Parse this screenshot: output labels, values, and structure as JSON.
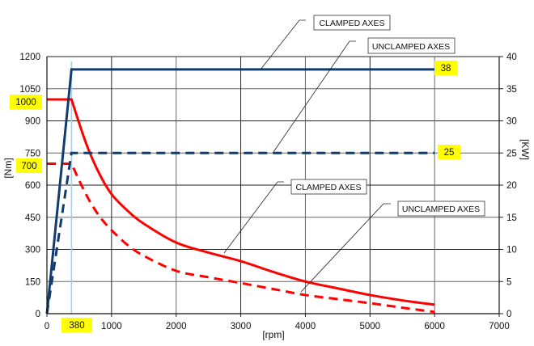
{
  "chart_data": {
    "type": "line",
    "title": "",
    "xlabel": "[rpm]",
    "ylabel_left": "[Nm]",
    "ylabel_right": "[KW]",
    "xlim": [
      0,
      7000
    ],
    "ylim_left": [
      0,
      1200
    ],
    "ylim_right": [
      0,
      40
    ],
    "x_ticks": [
      0,
      1000,
      2000,
      3000,
      4000,
      5000,
      6000,
      7000
    ],
    "x_tick_labels": [
      "0",
      "1000",
      "2000",
      "3000",
      "4000",
      "5000",
      "6000",
      "7000"
    ],
    "y_left_ticks": [
      0,
      150,
      300,
      450,
      600,
      750,
      900,
      1050,
      1200
    ],
    "y_left_tick_labels": [
      "0",
      "150",
      "300",
      "450",
      "600",
      "750",
      "900",
      "1050",
      "1200"
    ],
    "y_right_ticks": [
      0,
      5,
      10,
      15,
      20,
      25,
      30,
      35,
      40
    ],
    "y_right_tick_labels": [
      "0",
      "5",
      "10",
      "15",
      "20",
      "25",
      "30",
      "35",
      "40"
    ],
    "grid": true,
    "series": [
      {
        "name": "Torque clamped axes",
        "axis": "left",
        "color": "#ff0000",
        "style": "solid",
        "x": [
          0,
          380,
          600,
          800,
          1000,
          1250,
          1500,
          2000,
          2500,
          3000,
          3500,
          4000,
          4500,
          5000,
          5500,
          6000
        ],
        "y": [
          1000,
          1000,
          800,
          660,
          558,
          480,
          420,
          332,
          285,
          245,
          195,
          150,
          118,
          87,
          62,
          42
        ]
      },
      {
        "name": "Torque unclamped axes",
        "axis": "left",
        "color": "#ff0000",
        "style": "dashed",
        "x": [
          0,
          380,
          600,
          800,
          1000,
          1250,
          1500,
          2000,
          2500,
          3000,
          3500,
          4000,
          4500,
          5000,
          5500,
          6000
        ],
        "y": [
          700,
          700,
          560,
          460,
          390,
          320,
          270,
          200,
          170,
          143,
          115,
          87,
          68,
          49,
          28,
          8
        ]
      },
      {
        "name": "Power clamped axes",
        "axis": "right",
        "color": "#123c6e",
        "style": "solid",
        "x": [
          0,
          380,
          6000
        ],
        "y": [
          0,
          38,
          38
        ]
      },
      {
        "name": "Power unclamped axes",
        "axis": "right",
        "color": "#123c6e",
        "style": "dashed",
        "x": [
          0,
          380,
          6000
        ],
        "y": [
          0,
          25,
          25
        ]
      }
    ],
    "reference_line": {
      "x": 380,
      "color": "#a9cde0"
    },
    "highlight_labels": {
      "torque_clamped": "1000",
      "torque_unclamped": "700",
      "power_clamped": "38",
      "power_unclamped": "25",
      "base_speed": "380"
    },
    "annotations": {
      "power_clamped": "CLAMPED AXES",
      "power_unclamped": "UNCLAMPED AXES",
      "torque_clamped": "CLAMPED AXES",
      "torque_unclamped": "UNCLAMPED AXES"
    },
    "colors": {
      "highlight": "#ffff00",
      "torque": "#ff0000",
      "power": "#123c6e",
      "grid": "#222222"
    }
  }
}
